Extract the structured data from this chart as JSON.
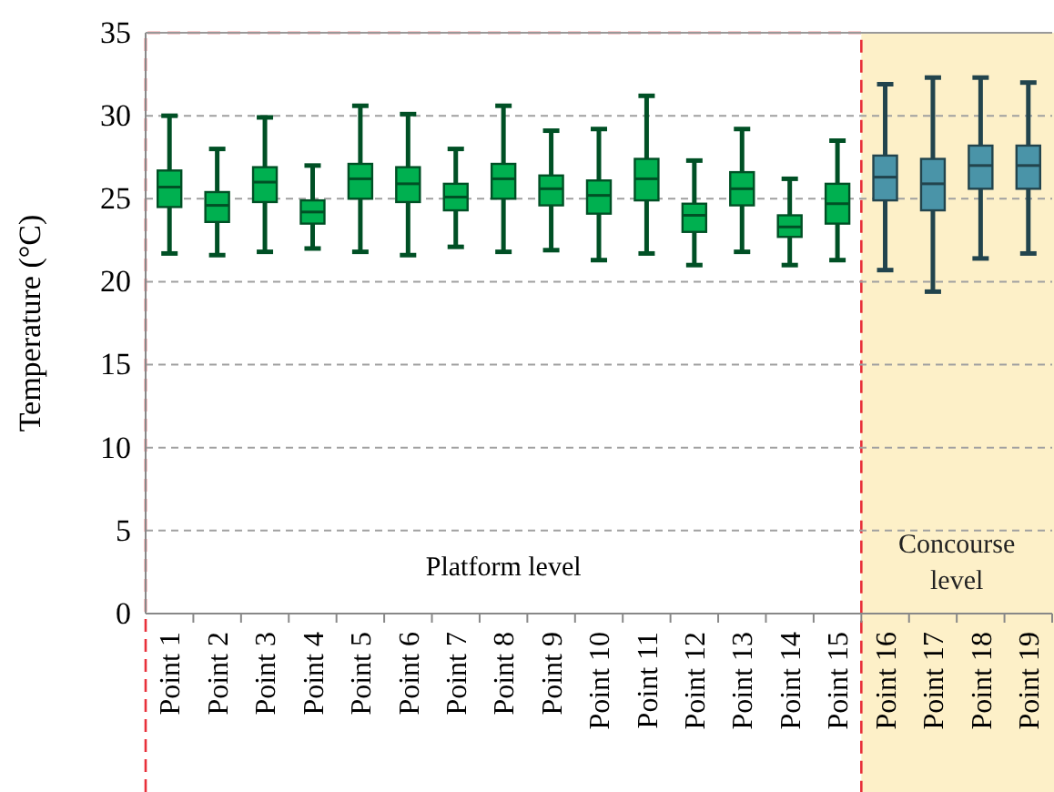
{
  "chart_data": {
    "type": "box",
    "ylabel": "Temperature (°C)",
    "categories": [
      "Point 1",
      "Point 2",
      "Point 3",
      "Point 4",
      "Point 5",
      "Point 6",
      "Point 7",
      "Point 8",
      "Point 9",
      "Point 10",
      "Point 11",
      "Point 12",
      "Point 13",
      "Point 14",
      "Point 15",
      "Point 16",
      "Point 17",
      "Point 18",
      "Point 19"
    ],
    "boxes": [
      {
        "low": 21.7,
        "q1": 24.5,
        "median": 25.7,
        "q3": 26.7,
        "high": 30.0
      },
      {
        "low": 21.6,
        "q1": 23.6,
        "median": 24.6,
        "q3": 25.4,
        "high": 28.0
      },
      {
        "low": 21.8,
        "q1": 24.8,
        "median": 26.0,
        "q3": 26.9,
        "high": 29.9
      },
      {
        "low": 22.0,
        "q1": 23.5,
        "median": 24.2,
        "q3": 24.9,
        "high": 27.0
      },
      {
        "low": 21.8,
        "q1": 25.0,
        "median": 26.2,
        "q3": 27.1,
        "high": 30.6
      },
      {
        "low": 21.6,
        "q1": 24.8,
        "median": 25.9,
        "q3": 26.9,
        "high": 30.1
      },
      {
        "low": 22.1,
        "q1": 24.3,
        "median": 25.1,
        "q3": 25.9,
        "high": 28.0
      },
      {
        "low": 21.8,
        "q1": 25.0,
        "median": 26.2,
        "q3": 27.1,
        "high": 30.6
      },
      {
        "low": 21.9,
        "q1": 24.6,
        "median": 25.6,
        "q3": 26.4,
        "high": 29.1
      },
      {
        "low": 21.3,
        "q1": 24.1,
        "median": 25.2,
        "q3": 26.1,
        "high": 29.2
      },
      {
        "low": 21.7,
        "q1": 24.9,
        "median": 26.2,
        "q3": 27.4,
        "high": 31.2
      },
      {
        "low": 21.0,
        "q1": 23.0,
        "median": 24.0,
        "q3": 24.7,
        "high": 27.3
      },
      {
        "low": 21.8,
        "q1": 24.6,
        "median": 25.6,
        "q3": 26.6,
        "high": 29.2
      },
      {
        "low": 21.0,
        "q1": 22.7,
        "median": 23.3,
        "q3": 24.0,
        "high": 26.2
      },
      {
        "low": 21.3,
        "q1": 23.5,
        "median": 24.7,
        "q3": 25.9,
        "high": 28.5
      },
      {
        "low": 20.7,
        "q1": 24.9,
        "median": 26.3,
        "q3": 27.6,
        "high": 31.9
      },
      {
        "low": 19.4,
        "q1": 24.3,
        "median": 25.9,
        "q3": 27.4,
        "high": 32.3
      },
      {
        "low": 21.4,
        "q1": 25.6,
        "median": 27.0,
        "q3": 28.2,
        "high": 32.3
      },
      {
        "low": 21.7,
        "q1": 25.6,
        "median": 27.0,
        "q3": 28.2,
        "high": 32.0
      }
    ],
    "colors": [
      "#00b050",
      "#00b050",
      "#00b050",
      "#00b050",
      "#00b050",
      "#00b050",
      "#00b050",
      "#00b050",
      "#00b050",
      "#00b050",
      "#00b050",
      "#00b050",
      "#00b050",
      "#00b050",
      "#00b050",
      "#4a94a8",
      "#4a94a8",
      "#4a94a8",
      "#4a94a8"
    ],
    "ylim": [
      0,
      35
    ],
    "yticks": [
      0,
      5,
      10,
      15,
      20,
      25,
      30,
      35
    ],
    "grid": "y",
    "annotations": [
      "Platform level"
    ],
    "bands": [
      {
        "axis": "x",
        "from": "Point 16",
        "to": "Point 19",
        "label": "Concourse level",
        "color": "#fdf0c8"
      }
    ]
  }
}
